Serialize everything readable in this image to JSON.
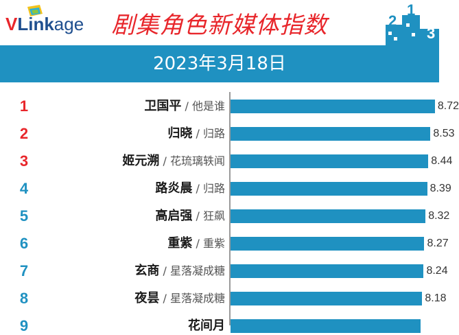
{
  "brand": {
    "logo_text_v": "V",
    "logo_text_rest": "Link",
    "logo_text_tail": "age"
  },
  "title": "剧集角色新媒体指数",
  "date": "2023年3月18日",
  "colors": {
    "title_red": "#e8262b",
    "rank_top": "#e8262b",
    "rank_other": "#1f91c1",
    "bar": "#1f91c1",
    "band": "#1f91c1"
  },
  "chart_data": {
    "type": "bar",
    "orientation": "horizontal",
    "title": "剧集角色新媒体指数",
    "subtitle": "2023年3月18日",
    "xlim": [
      0,
      8.9
    ],
    "ranks": [
      "1",
      "2",
      "3",
      "4",
      "5",
      "6",
      "7",
      "8",
      "9"
    ],
    "categories": [
      "卫国平",
      "归晓",
      "姬元溯",
      "路炎晨",
      "高启强",
      "重紫",
      "玄商",
      "夜昙",
      "花间月"
    ],
    "shows": [
      "他是谁",
      "归路",
      "花琉璃轶闻",
      "归路",
      "狂飙",
      "重紫",
      "星落凝成糖",
      "星落凝成糖",
      ""
    ],
    "values": [
      8.72,
      8.53,
      8.44,
      8.39,
      8.32,
      8.27,
      8.24,
      8.18,
      8.1
    ],
    "value_labels": [
      "8.72",
      "8.53",
      "8.44",
      "8.39",
      "8.32",
      "8.27",
      "8.24",
      "8.18",
      ""
    ]
  }
}
